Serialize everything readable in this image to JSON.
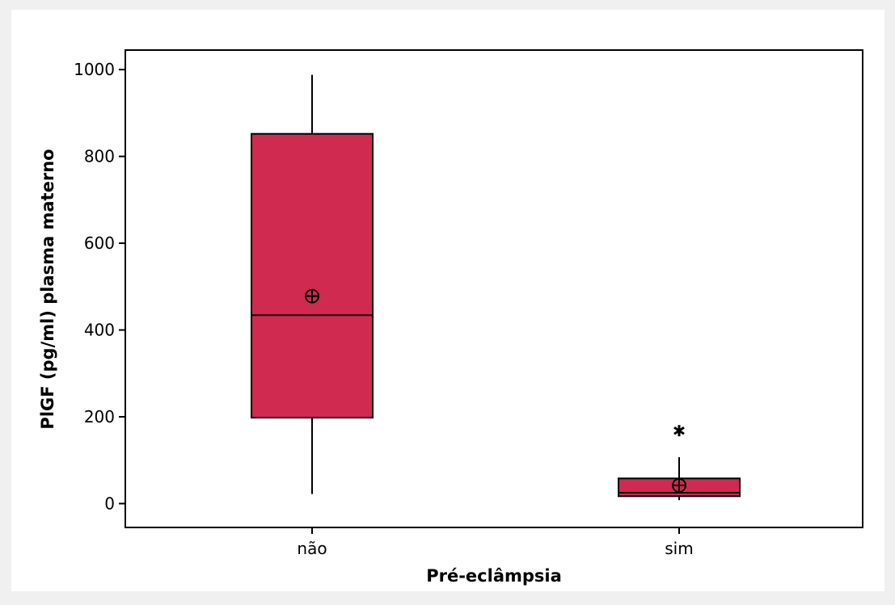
{
  "chart_data": {
    "type": "boxplot",
    "title": "",
    "xlabel": "Pré-eclâmpsia",
    "ylabel": "PlGF (pg/ml) plasma materno",
    "ylim": [
      -55,
      1045
    ],
    "yticks": [
      0,
      200,
      400,
      600,
      800,
      1000
    ],
    "categories": [
      "não",
      "sim"
    ],
    "boxes": [
      {
        "category": "não",
        "q1": 198,
        "median": 434,
        "q3": 852,
        "whisker_low": 22,
        "whisker_high": 988,
        "mean": 478,
        "outliers": []
      },
      {
        "category": "sim",
        "q1": 17,
        "median": 25,
        "q3": 58,
        "whisker_low": 8,
        "whisker_high": 107,
        "mean": 42,
        "outliers": [
          168
        ]
      }
    ],
    "grid": false,
    "legend": "none",
    "colors": {
      "box_fill": "#d02a50",
      "outline": "#000000",
      "plot_background": "#ffffff",
      "figure_background": "#f0f0f0"
    }
  }
}
